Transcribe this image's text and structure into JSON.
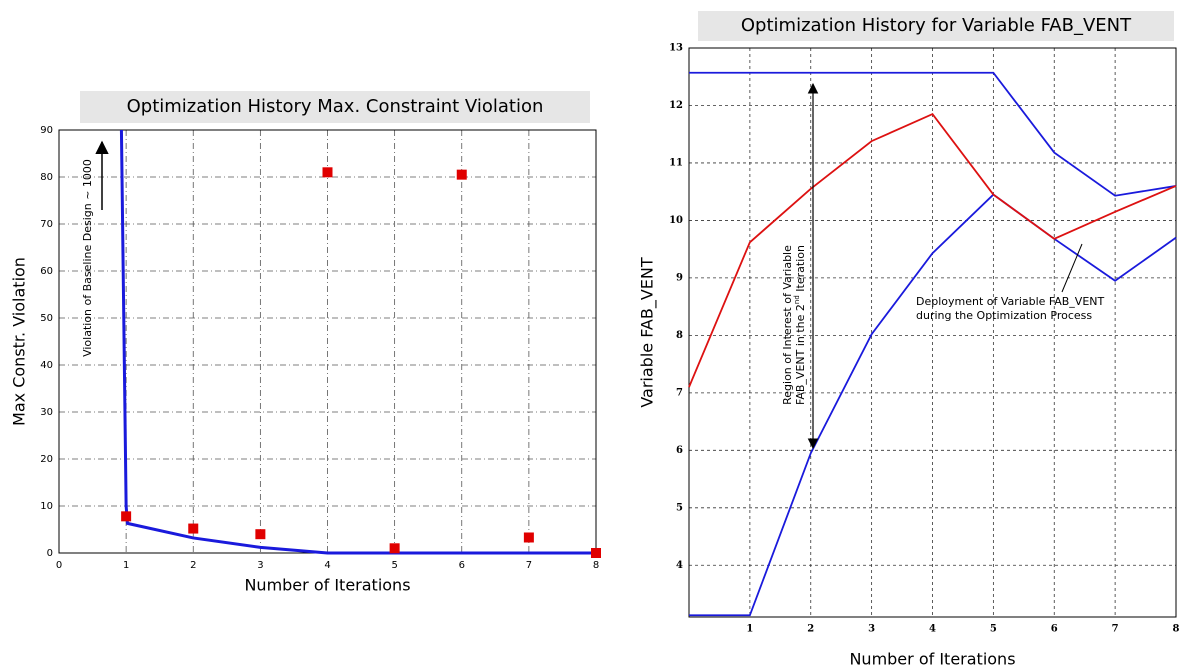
{
  "chart_data": [
    {
      "type": "line",
      "title": "Optimization History Max. Constraint Violation",
      "xlabel": "Number of Iterations",
      "ylabel": "Max Constr. Violation",
      "annotation": "Violation of Baseline Design ~ 1000",
      "xlim": [
        0,
        8
      ],
      "ylim": [
        0,
        90
      ],
      "xticks": [
        0,
        1,
        2,
        3,
        4,
        5,
        6,
        7,
        8
      ],
      "yticks": [
        0,
        10,
        20,
        30,
        40,
        50,
        60,
        70,
        80,
        90
      ],
      "grid": true,
      "series": [
        {
          "type": "line",
          "color": "#1a1adc",
          "x": [
            0.93,
            1,
            1.02,
            2,
            3,
            4,
            5,
            6,
            7,
            8
          ],
          "values": [
            90,
            10,
            6.3,
            3.2,
            1.2,
            0,
            0,
            0,
            0,
            0
          ]
        },
        {
          "type": "scatter",
          "color": "#e00000",
          "x": [
            1,
            2,
            3,
            4,
            5,
            6,
            7,
            8
          ],
          "values": [
            7.8,
            5.2,
            4,
            81,
            1,
            80.5,
            3.3,
            0
          ]
        }
      ]
    },
    {
      "type": "line",
      "title": "Optimization History for Variable FAB_VENT",
      "xlabel": "Number of Iterations",
      "ylabel": "Variable FAB_VENT",
      "annotation_lines": [
        "Region of Interest of Variable"
      ],
      "annotation_parts": [
        "FAB_VENT in the 2",
        "nd",
        " Iteration"
      ],
      "callout": [
        "Deployment of Variable FAB_VENT",
        "during the Optimization Process"
      ],
      "xlim": [
        0,
        8
      ],
      "ylim": [
        3.1,
        13
      ],
      "xticks": [
        1,
        2,
        3,
        4,
        5,
        6,
        7,
        8
      ],
      "yticks": [
        4,
        5,
        6,
        7,
        8,
        9,
        10,
        11,
        12,
        13
      ],
      "grid": true,
      "series": [
        {
          "type": "line",
          "color": "#1a1adc",
          "x": [
            0,
            1,
            2,
            3,
            4,
            5,
            6,
            7,
            8
          ],
          "values": [
            12.57,
            12.57,
            12.57,
            12.57,
            12.57,
            12.57,
            11.18,
            10.43,
            10.6
          ]
        },
        {
          "type": "line",
          "color": "#1a1adc",
          "x": [
            0,
            1,
            2,
            3,
            4,
            5,
            6,
            7,
            8
          ],
          "values": [
            3.13,
            3.13,
            5.95,
            8.02,
            9.43,
            10.45,
            9.68,
            8.95,
            9.7
          ]
        },
        {
          "type": "line",
          "color": "#dd1111",
          "x": [
            0,
            1,
            2,
            3,
            4,
            5,
            6,
            7,
            8
          ],
          "values": [
            7.1,
            9.62,
            10.55,
            11.38,
            11.85,
            10.45,
            9.68,
            10.15,
            10.6
          ]
        }
      ]
    }
  ]
}
